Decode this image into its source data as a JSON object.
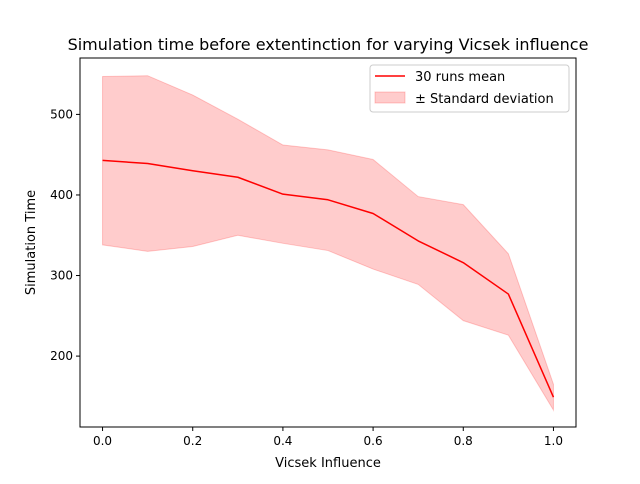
{
  "chart_data": {
    "type": "line",
    "title": "Simulation time before extentinction for varying Vicsek influence",
    "xlabel": "Vicsek Influence",
    "ylabel": "Simulation Time",
    "xlim": [
      -0.05,
      1.05
    ],
    "ylim": [
      112,
      570
    ],
    "x_ticks": [
      0.0,
      0.2,
      0.4,
      0.6,
      0.8,
      1.0
    ],
    "x_tick_labels": [
      "0.0",
      "0.2",
      "0.4",
      "0.6",
      "0.8",
      "1.0"
    ],
    "y_ticks": [
      200,
      300,
      400,
      500
    ],
    "y_tick_labels": [
      "200",
      "300",
      "400",
      "500"
    ],
    "x": [
      0.0,
      0.1,
      0.2,
      0.3,
      0.4,
      0.5,
      0.6,
      0.7,
      0.8,
      0.9,
      1.0
    ],
    "series": [
      {
        "name": "30 runs mean",
        "color": "#ff0000",
        "values": [
          443,
          439,
          430,
          422,
          401,
          394,
          377,
          343,
          316,
          277,
          149
        ]
      }
    ],
    "band": {
      "name": "± Standard deviation",
      "color": "#ff0000",
      "opacity": 0.2,
      "upper": [
        547,
        548,
        524,
        494,
        462,
        456,
        444,
        398,
        388,
        327,
        165
      ],
      "lower": [
        338,
        330,
        336,
        350,
        340,
        331,
        308,
        289,
        244,
        226,
        133
      ]
    },
    "grid": false,
    "legend_position": "top-right"
  }
}
